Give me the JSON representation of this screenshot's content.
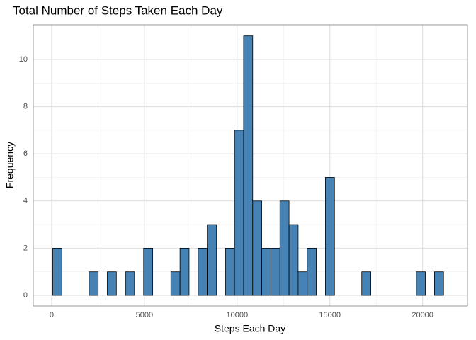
{
  "chart_data": {
    "type": "histogram",
    "title": "Total Number of Steps Taken Each Day",
    "xlabel": "Steps Each Day",
    "ylabel": "Frequency",
    "bins": [
      60,
      550,
      1040,
      1530,
      2020,
      2510,
      3000,
      3490,
      3980,
      4470,
      4960,
      5450,
      5940,
      6430,
      6920,
      7410,
      7900,
      8390,
      8880,
      9370,
      9860,
      10350,
      10840,
      11330,
      11820,
      12310,
      12800,
      13290,
      13780,
      14270,
      14760,
      15250,
      15740,
      16230,
      16720,
      17210,
      17700,
      18190,
      18680,
      19170,
      19660,
      20150,
      20640,
      21130
    ],
    "values": [
      2,
      0,
      0,
      0,
      1,
      0,
      1,
      0,
      1,
      0,
      2,
      0,
      0,
      1,
      2,
      0,
      2,
      3,
      0,
      2,
      7,
      11,
      4,
      2,
      2,
      4,
      3,
      1,
      2,
      0,
      5,
      0,
      0,
      0,
      1,
      0,
      0,
      0,
      0,
      0,
      1,
      0,
      1
    ],
    "color": "#4682b4",
    "xlim": [
      -990,
      22420
    ],
    "xticks": [
      0,
      5000,
      10000,
      15000,
      20000
    ],
    "ylim": [
      -0.45,
      11.47
    ],
    "yticks": [
      0,
      2,
      4,
      6,
      8,
      10
    ],
    "grid": true
  }
}
